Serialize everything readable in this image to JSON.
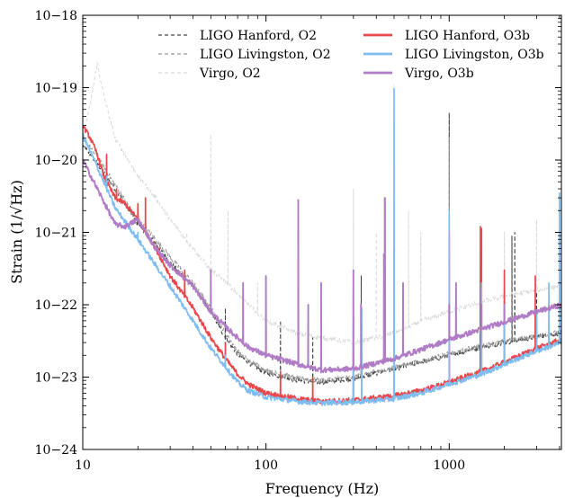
{
  "chart_data": {
    "type": "line",
    "xlabel": "Frequency (Hz)",
    "ylabel": "Strain (1/√Hz)",
    "xscale": "log",
    "yscale": "log",
    "xlim": [
      10,
      4096
    ],
    "ylim": [
      1e-24,
      1e-18
    ],
    "xticks": [
      {
        "value": 10,
        "label": "10"
      },
      {
        "value": 100,
        "label": "100"
      },
      {
        "value": 1000,
        "label": "1000"
      }
    ],
    "yticks": [
      {
        "value": 1e-24,
        "label": "10−24"
      },
      {
        "value": 1e-23,
        "label": "10−23"
      },
      {
        "value": 1e-22,
        "label": "10−22"
      },
      {
        "value": 1e-21,
        "label": "10−21"
      },
      {
        "value": 1e-20,
        "label": "10−20"
      },
      {
        "value": 1e-19,
        "label": "10−19"
      },
      {
        "value": 1e-18,
        "label": "10−18"
      }
    ],
    "legend_position": "top",
    "grid": false,
    "series": [
      {
        "name": "LIGO Hanford, O2",
        "color": "#444444",
        "dash": "4,3",
        "width": 1.1,
        "opacity": 1,
        "points": [
          [
            10,
            1.6e-20
          ],
          [
            12,
            9e-21
          ],
          [
            15,
            4e-21
          ],
          [
            20,
            1.3e-21
          ],
          [
            25,
            7e-22
          ],
          [
            30,
            3.8e-22
          ],
          [
            40,
            1.8e-22
          ],
          [
            50,
            8e-23
          ],
          [
            60,
            3.5e-23
          ],
          [
            70,
            2.1e-23
          ],
          [
            80,
            1.6e-23
          ],
          [
            100,
            1.15e-23
          ],
          [
            150,
            9e-24
          ],
          [
            200,
            8.5e-24
          ],
          [
            300,
            9.5e-24
          ],
          [
            500,
            1.3e-23
          ],
          [
            700,
            1.6e-23
          ],
          [
            1000,
            2e-23
          ],
          [
            1500,
            2.6e-23
          ],
          [
            2000,
            3e-23
          ],
          [
            3000,
            3.6e-23
          ],
          [
            4096,
            4.1e-23
          ]
        ],
        "peaks": [
          [
            60,
            9e-23
          ],
          [
            120,
            6e-23
          ],
          [
            180,
            3.5e-23
          ],
          [
            300,
            4e-23
          ],
          [
            331,
            2.5e-22
          ],
          [
            500,
            1.5e-22
          ],
          [
            1000,
            4.5e-20
          ],
          [
            1500,
            1.2e-21
          ],
          [
            2000,
            3e-22
          ],
          [
            2200,
            9e-22
          ],
          [
            2280,
            1e-21
          ],
          [
            3000,
            1.5e-22
          ]
        ]
      },
      {
        "name": "LIGO Livingston, O2",
        "color": "#999999",
        "dash": "4,3",
        "width": 1.1,
        "opacity": 1,
        "points": [
          [
            10,
            2e-20
          ],
          [
            12,
            1.1e-20
          ],
          [
            15,
            4.5e-21
          ],
          [
            20,
            1.5e-21
          ],
          [
            25,
            8e-22
          ],
          [
            30,
            4.5e-22
          ],
          [
            40,
            2e-22
          ],
          [
            50,
            9e-23
          ],
          [
            60,
            4e-23
          ],
          [
            70,
            2.3e-23
          ],
          [
            80,
            1.7e-23
          ],
          [
            100,
            1.25e-23
          ],
          [
            150,
            9.5e-24
          ],
          [
            200,
            9e-24
          ],
          [
            300,
            1e-23
          ],
          [
            500,
            1.35e-23
          ],
          [
            700,
            1.65e-23
          ],
          [
            1000,
            2.1e-23
          ],
          [
            1500,
            2.7e-23
          ],
          [
            2000,
            3.1e-23
          ],
          [
            3000,
            3.7e-23
          ],
          [
            4096,
            4.2e-23
          ]
        ],
        "peaks": [
          [
            300,
            9e-23
          ],
          [
            500,
            8e-23
          ],
          [
            1000,
            2e-20
          ],
          [
            1500,
            3e-22
          ],
          [
            2000,
            2e-22
          ]
        ]
      },
      {
        "name": "Virgo, O2",
        "color": "#d9d9d9",
        "dash": "4,3",
        "width": 1.0,
        "opacity": 1,
        "points": [
          [
            10,
            2e-20
          ],
          [
            11,
            6e-20
          ],
          [
            12,
            2.2e-19
          ],
          [
            13,
            8e-20
          ],
          [
            15,
            2e-20
          ],
          [
            20,
            6e-21
          ],
          [
            25,
            3e-21
          ],
          [
            30,
            1.5e-21
          ],
          [
            40,
            6e-22
          ],
          [
            50,
            3e-22
          ],
          [
            60,
            2.1e-22
          ],
          [
            80,
            1e-22
          ],
          [
            100,
            6e-23
          ],
          [
            150,
            4e-23
          ],
          [
            200,
            3.5e-23
          ],
          [
            300,
            3e-23
          ],
          [
            500,
            4e-23
          ],
          [
            700,
            6e-23
          ],
          [
            1000,
            8e-23
          ],
          [
            1500,
            1.1e-22
          ],
          [
            2000,
            1.3e-22
          ],
          [
            3000,
            1.6e-22
          ],
          [
            4096,
            1.8e-22
          ]
        ],
        "peaks": [
          [
            37,
            1e-21
          ],
          [
            50,
            2.3e-20
          ],
          [
            62,
            2e-21
          ],
          [
            90,
            2e-22
          ],
          [
            150,
            3e-22
          ],
          [
            300,
            4e-21
          ],
          [
            400,
            1e-21
          ],
          [
            440,
            3e-21
          ],
          [
            600,
            2e-21
          ],
          [
            700,
            1e-21
          ],
          [
            1000,
            1e-21
          ],
          [
            2000,
            1e-21
          ],
          [
            3000,
            1.5e-21
          ]
        ]
      },
      {
        "name": "LIGO Hanford, O3b",
        "color": "#e8474b",
        "dash": "",
        "width": 1.7,
        "opacity": 1,
        "points": [
          [
            10,
            3e-20
          ],
          [
            11,
            2e-20
          ],
          [
            12,
            1.2e-20
          ],
          [
            13,
            6e-21
          ],
          [
            15,
            3e-21
          ],
          [
            17,
            2.5e-21
          ],
          [
            20,
            1.5e-21
          ],
          [
            25,
            6e-22
          ],
          [
            30,
            2.5e-22
          ],
          [
            40,
            9e-23
          ],
          [
            50,
            3.5e-23
          ],
          [
            60,
            1.8e-23
          ],
          [
            70,
            1.1e-23
          ],
          [
            80,
            8e-24
          ],
          [
            100,
            6e-24
          ],
          [
            150,
            5e-24
          ],
          [
            200,
            4.6e-24
          ],
          [
            300,
            4.8e-24
          ],
          [
            500,
            5.5e-24
          ],
          [
            700,
            6.5e-24
          ],
          [
            1000,
            8.5e-24
          ],
          [
            1500,
            1.2e-23
          ],
          [
            2000,
            1.6e-23
          ],
          [
            3000,
            2.5e-23
          ],
          [
            4096,
            3.3e-23
          ]
        ],
        "peaks": [
          [
            13.5,
            1.2e-20
          ],
          [
            15.3,
            4e-21
          ],
          [
            20,
            2.5e-21
          ],
          [
            22,
            3e-21
          ],
          [
            26,
            6e-22
          ],
          [
            36,
            3e-22
          ],
          [
            60,
            3e-23
          ],
          [
            120,
            1.2e-23
          ],
          [
            180,
            1e-23
          ],
          [
            300,
            2e-23
          ],
          [
            500,
            6e-22
          ],
          [
            1000,
            1e-21
          ],
          [
            1480,
            1.2e-21
          ],
          [
            1500,
            1.1e-21
          ],
          [
            2000,
            3e-22
          ],
          [
            2950,
            2.5e-22
          ]
        ]
      },
      {
        "name": "LIGO Livingston, O3b",
        "color": "#7fbcf0",
        "dash": "",
        "width": 1.7,
        "opacity": 1,
        "points": [
          [
            10,
            2.2e-20
          ],
          [
            12,
            8e-21
          ],
          [
            15,
            2.2e-21
          ],
          [
            20,
            8e-22
          ],
          [
            25,
            3.5e-22
          ],
          [
            30,
            1.8e-22
          ],
          [
            40,
            6e-23
          ],
          [
            50,
            2.5e-23
          ],
          [
            60,
            1.4e-23
          ],
          [
            70,
            8.5e-24
          ],
          [
            80,
            6.5e-24
          ],
          [
            100,
            5.3e-24
          ],
          [
            150,
            4.6e-24
          ],
          [
            200,
            4.4e-24
          ],
          [
            300,
            4.5e-24
          ],
          [
            500,
            5e-24
          ],
          [
            700,
            6e-24
          ],
          [
            1000,
            8e-24
          ],
          [
            1500,
            1.1e-23
          ],
          [
            2000,
            1.5e-23
          ],
          [
            3000,
            2.3e-23
          ],
          [
            4096,
            3e-23
          ]
        ],
        "peaks": [
          [
            13.5,
            6e-21
          ],
          [
            20,
            1e-21
          ],
          [
            60,
            2e-23
          ],
          [
            300,
            6e-23
          ],
          [
            333,
            9e-23
          ],
          [
            500,
            1.1e-19
          ],
          [
            1000,
            2e-21
          ],
          [
            1500,
            2e-22
          ],
          [
            2000,
            1e-22
          ],
          [
            3000,
            8e-23
          ],
          [
            3500,
            2e-22
          ],
          [
            4000,
            3.5e-21
          ]
        ]
      },
      {
        "name": "Virgo, O3b",
        "color": "#b07cc6",
        "dash": "",
        "width": 1.9,
        "opacity": 1,
        "points": [
          [
            10,
            1e-20
          ],
          [
            12,
            4e-21
          ],
          [
            15,
            1.3e-21
          ],
          [
            17,
            1.2e-21
          ],
          [
            20,
            1.5e-21
          ],
          [
            25,
            6e-22
          ],
          [
            30,
            3.5e-22
          ],
          [
            40,
            1.8e-22
          ],
          [
            50,
            8e-23
          ],
          [
            60,
            5e-23
          ],
          [
            70,
            3.5e-23
          ],
          [
            80,
            2.6e-23
          ],
          [
            100,
            2e-23
          ],
          [
            150,
            1.5e-23
          ],
          [
            200,
            1.25e-23
          ],
          [
            300,
            1.3e-23
          ],
          [
            500,
            1.8e-23
          ],
          [
            700,
            2.4e-23
          ],
          [
            1000,
            3.3e-23
          ],
          [
            1500,
            4.6e-23
          ],
          [
            2000,
            5.8e-23
          ],
          [
            3000,
            8e-23
          ],
          [
            4096,
            1e-22
          ]
        ],
        "peaks": [
          [
            50,
            3e-22
          ],
          [
            75,
            2e-22
          ],
          [
            100,
            2.5e-22
          ],
          [
            150,
            2.8e-21
          ],
          [
            170,
            1e-22
          ],
          [
            200,
            2e-22
          ],
          [
            300,
            3e-22
          ],
          [
            330,
            1e-22
          ],
          [
            440,
            5e-22
          ],
          [
            446,
            3e-21
          ],
          [
            560,
            2e-22
          ],
          [
            1000,
            1e-22
          ],
          [
            1090,
            2e-22
          ],
          [
            1500,
            1e-22
          ],
          [
            2000,
            1e-22
          ]
        ]
      }
    ]
  }
}
